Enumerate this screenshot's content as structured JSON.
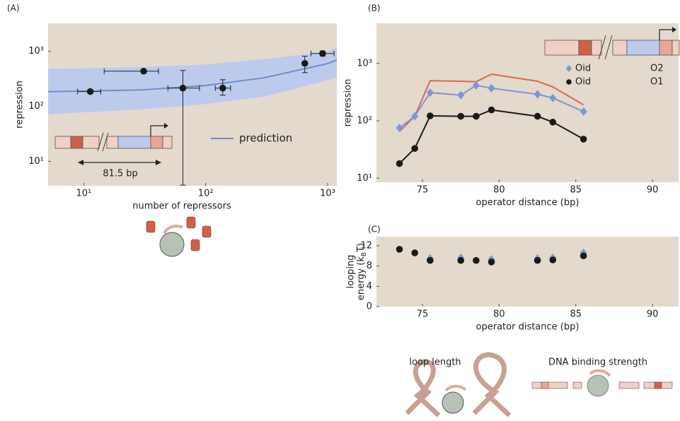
{
  "chart_data": [
    {
      "type": "scatter",
      "label": "(A)",
      "xlabel": "number of repressors",
      "ylabel": "repression",
      "xscale": "log",
      "yscale": "log",
      "xlim": [
        5.1,
        1190
      ],
      "ylim": [
        3.6,
        3240
      ],
      "xticks": [
        {
          "value": 10,
          "label": "10¹"
        },
        {
          "value": 100,
          "label": "10²"
        },
        {
          "value": 1000,
          "label": "10³"
        }
      ],
      "yticks": [
        {
          "value": 10,
          "label": "10¹"
        },
        {
          "value": 100,
          "label": "10²"
        },
        {
          "value": 1000,
          "label": "10³"
        }
      ],
      "background": "#e3d9cc",
      "inset_label": "81.5 bp",
      "series": [
        {
          "name": "prediction",
          "kind": "line",
          "color": "#6f8cc8",
          "band_color": "#bccbec",
          "x": [
            5.1,
            10,
            30,
            100,
            300,
            1000,
            1190
          ],
          "values": [
            185,
            190,
            200,
            240,
            330,
            600,
            700
          ],
          "band_upper": [
            480,
            490,
            520,
            580,
            720,
            1000,
            1150
          ],
          "band_lower": [
            72,
            78,
            88,
            110,
            150,
            300,
            340
          ]
        },
        {
          "kind": "scatter",
          "marker": "circle",
          "color": "#1a1a1a",
          "x": [
            11.3,
            31,
            65,
            138,
            650,
            910
          ],
          "values": [
            186,
            437,
            215,
            215,
            605,
            915
          ],
          "x_low": [
            8.9,
            14.7,
            49,
            120,
            null,
            730
          ],
          "x_high": [
            13.8,
            41,
            89,
            160,
            null,
            1130
          ],
          "y_low": [
            null,
            null,
            3.7,
            160,
            410,
            820
          ],
          "y_high": [
            null,
            null,
            450,
            305,
            820,
            1020
          ]
        }
      ]
    },
    {
      "type": "line",
      "label": "(B)",
      "xlabel": "operator distance (bp)",
      "ylabel": "repression",
      "xscale": "linear",
      "yscale": "log",
      "xlim": [
        72,
        91.7
      ],
      "ylim": [
        8.5,
        5000
      ],
      "xticks": [
        75,
        80,
        85,
        90
      ],
      "yticks": [
        {
          "value": 10,
          "label": "10¹"
        },
        {
          "value": 100,
          "label": "10²"
        },
        {
          "value": 1000,
          "label": "10³"
        }
      ],
      "background": "#e3d9cc",
      "legend": "top-right",
      "series": [
        {
          "kind": "line",
          "color": "#d9694f",
          "x": [
            73.5,
            74.5,
            75.5,
            77.5,
            78.5,
            79.5,
            82.5,
            83.5,
            85.5
          ],
          "values": [
            65,
            120,
            500,
            490,
            480,
            650,
            490,
            390,
            190
          ]
        },
        {
          "name": "Oid",
          "partner": "O2",
          "kind": "line",
          "marker": "diamond",
          "color": "#7b97d6",
          "x": [
            73.5,
            74.5,
            75.5,
            77.5,
            78.5,
            79.5,
            82.5,
            83.5,
            85.5
          ],
          "values": [
            75,
            120,
            310,
            280,
            415,
            370,
            290,
            250,
            145
          ]
        },
        {
          "name": "Oid",
          "partner": "O1",
          "kind": "line",
          "marker": "circle",
          "color": "#1a1a1a",
          "x": [
            73.5,
            74.5,
            75.5,
            77.5,
            78.5,
            79.5,
            82.5,
            83.5,
            85.5
          ],
          "values": [
            18,
            33,
            122,
            120,
            120,
            155,
            120,
            95,
            48
          ]
        }
      ]
    },
    {
      "type": "scatter",
      "label": "(C)",
      "xlabel": "operator distance (bp)",
      "ylabel": {
        "line1": "looping",
        "line2": "energy (k",
        "sub": "B",
        "end": "T)"
      },
      "xscale": "linear",
      "yscale": "linear",
      "xlim": [
        72,
        91.7
      ],
      "ylim": [
        0,
        13.8
      ],
      "xticks": [
        75,
        80,
        85,
        90
      ],
      "yticks": [
        0,
        4,
        8,
        12
      ],
      "background": "#e3d9cc",
      "series": [
        {
          "kind": "scatter",
          "marker": "diamond",
          "color": "#7b97d6",
          "x": [
            73.5,
            74.5,
            75.5,
            77.5,
            78.5,
            79.5,
            82.5,
            83.5,
            85.5
          ],
          "values": [
            null,
            null,
            9.5,
            9.6,
            null,
            9.3,
            9.5,
            9.6,
            10.6
          ]
        },
        {
          "kind": "scatter",
          "marker": "circle",
          "color": "#1a1a1a",
          "x": [
            73.5,
            74.5,
            75.5,
            77.5,
            78.5,
            79.5,
            82.5,
            83.5,
            85.5
          ],
          "values": [
            11.3,
            10.6,
            9.1,
            9.1,
            9.1,
            8.8,
            9.1,
            9.2,
            10.0
          ]
        }
      ]
    }
  ],
  "captions": {
    "loop": "loop length",
    "binding": "DNA binding strength"
  }
}
